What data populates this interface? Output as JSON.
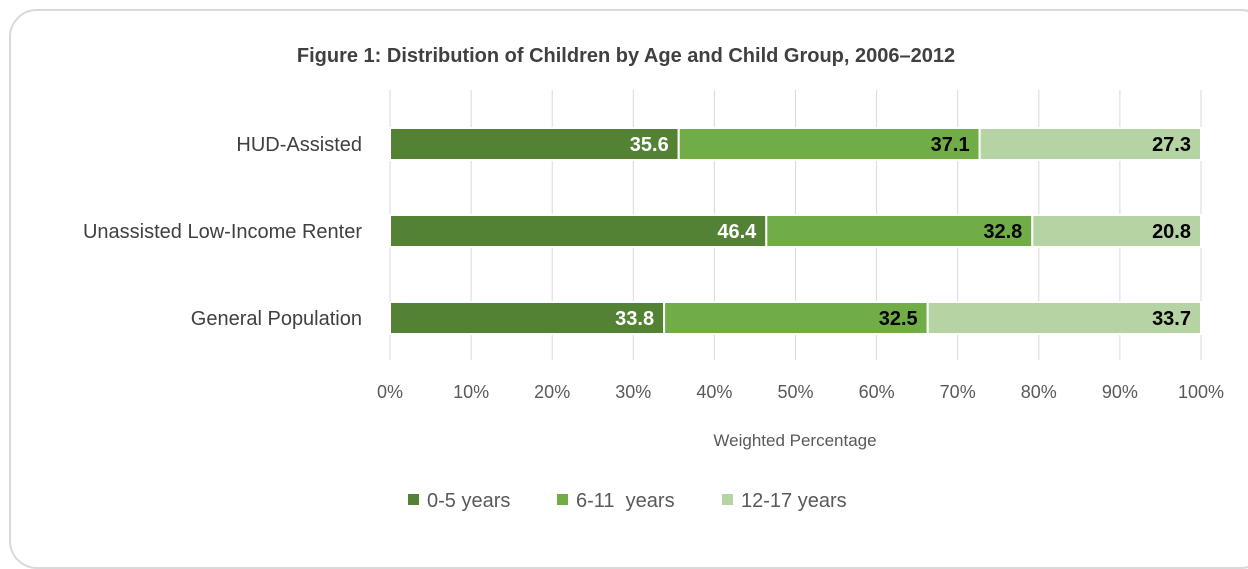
{
  "chart_data": {
    "type": "bar",
    "orientation": "horizontal",
    "stacked": true,
    "title": "Figure 1: Distribution of Children by Age and Child Group, 2006–2012",
    "xlabel": "Weighted Percentage",
    "ylabel": "",
    "xlim": [
      0,
      100
    ],
    "x_ticks": [
      "0%",
      "10%",
      "20%",
      "30%",
      "40%",
      "50%",
      "60%",
      "70%",
      "80%",
      "90%",
      "100%"
    ],
    "grid": "vertical",
    "legend_position": "bottom",
    "categories": [
      "HUD-Assisted",
      "Unassisted Low-Income Renter",
      "General Population"
    ],
    "series": [
      {
        "name": "0-5 years",
        "color": "#548235",
        "label_color": "#ffffff",
        "values": [
          35.6,
          46.4,
          33.8
        ],
        "labels": [
          "35.6",
          "46.4",
          "33.8"
        ]
      },
      {
        "name": "6-11  years",
        "color": "#70ad47",
        "label_color": "#000000",
        "values": [
          37.1,
          32.8,
          32.5
        ],
        "labels": [
          "37.1",
          "32.8",
          "32.5"
        ]
      },
      {
        "name": "12-17 years",
        "color": "#b5d3a3",
        "label_color": "#000000",
        "values": [
          27.3,
          20.8,
          33.7
        ],
        "labels": [
          "27.3",
          "20.8",
          "33.7"
        ]
      }
    ]
  }
}
